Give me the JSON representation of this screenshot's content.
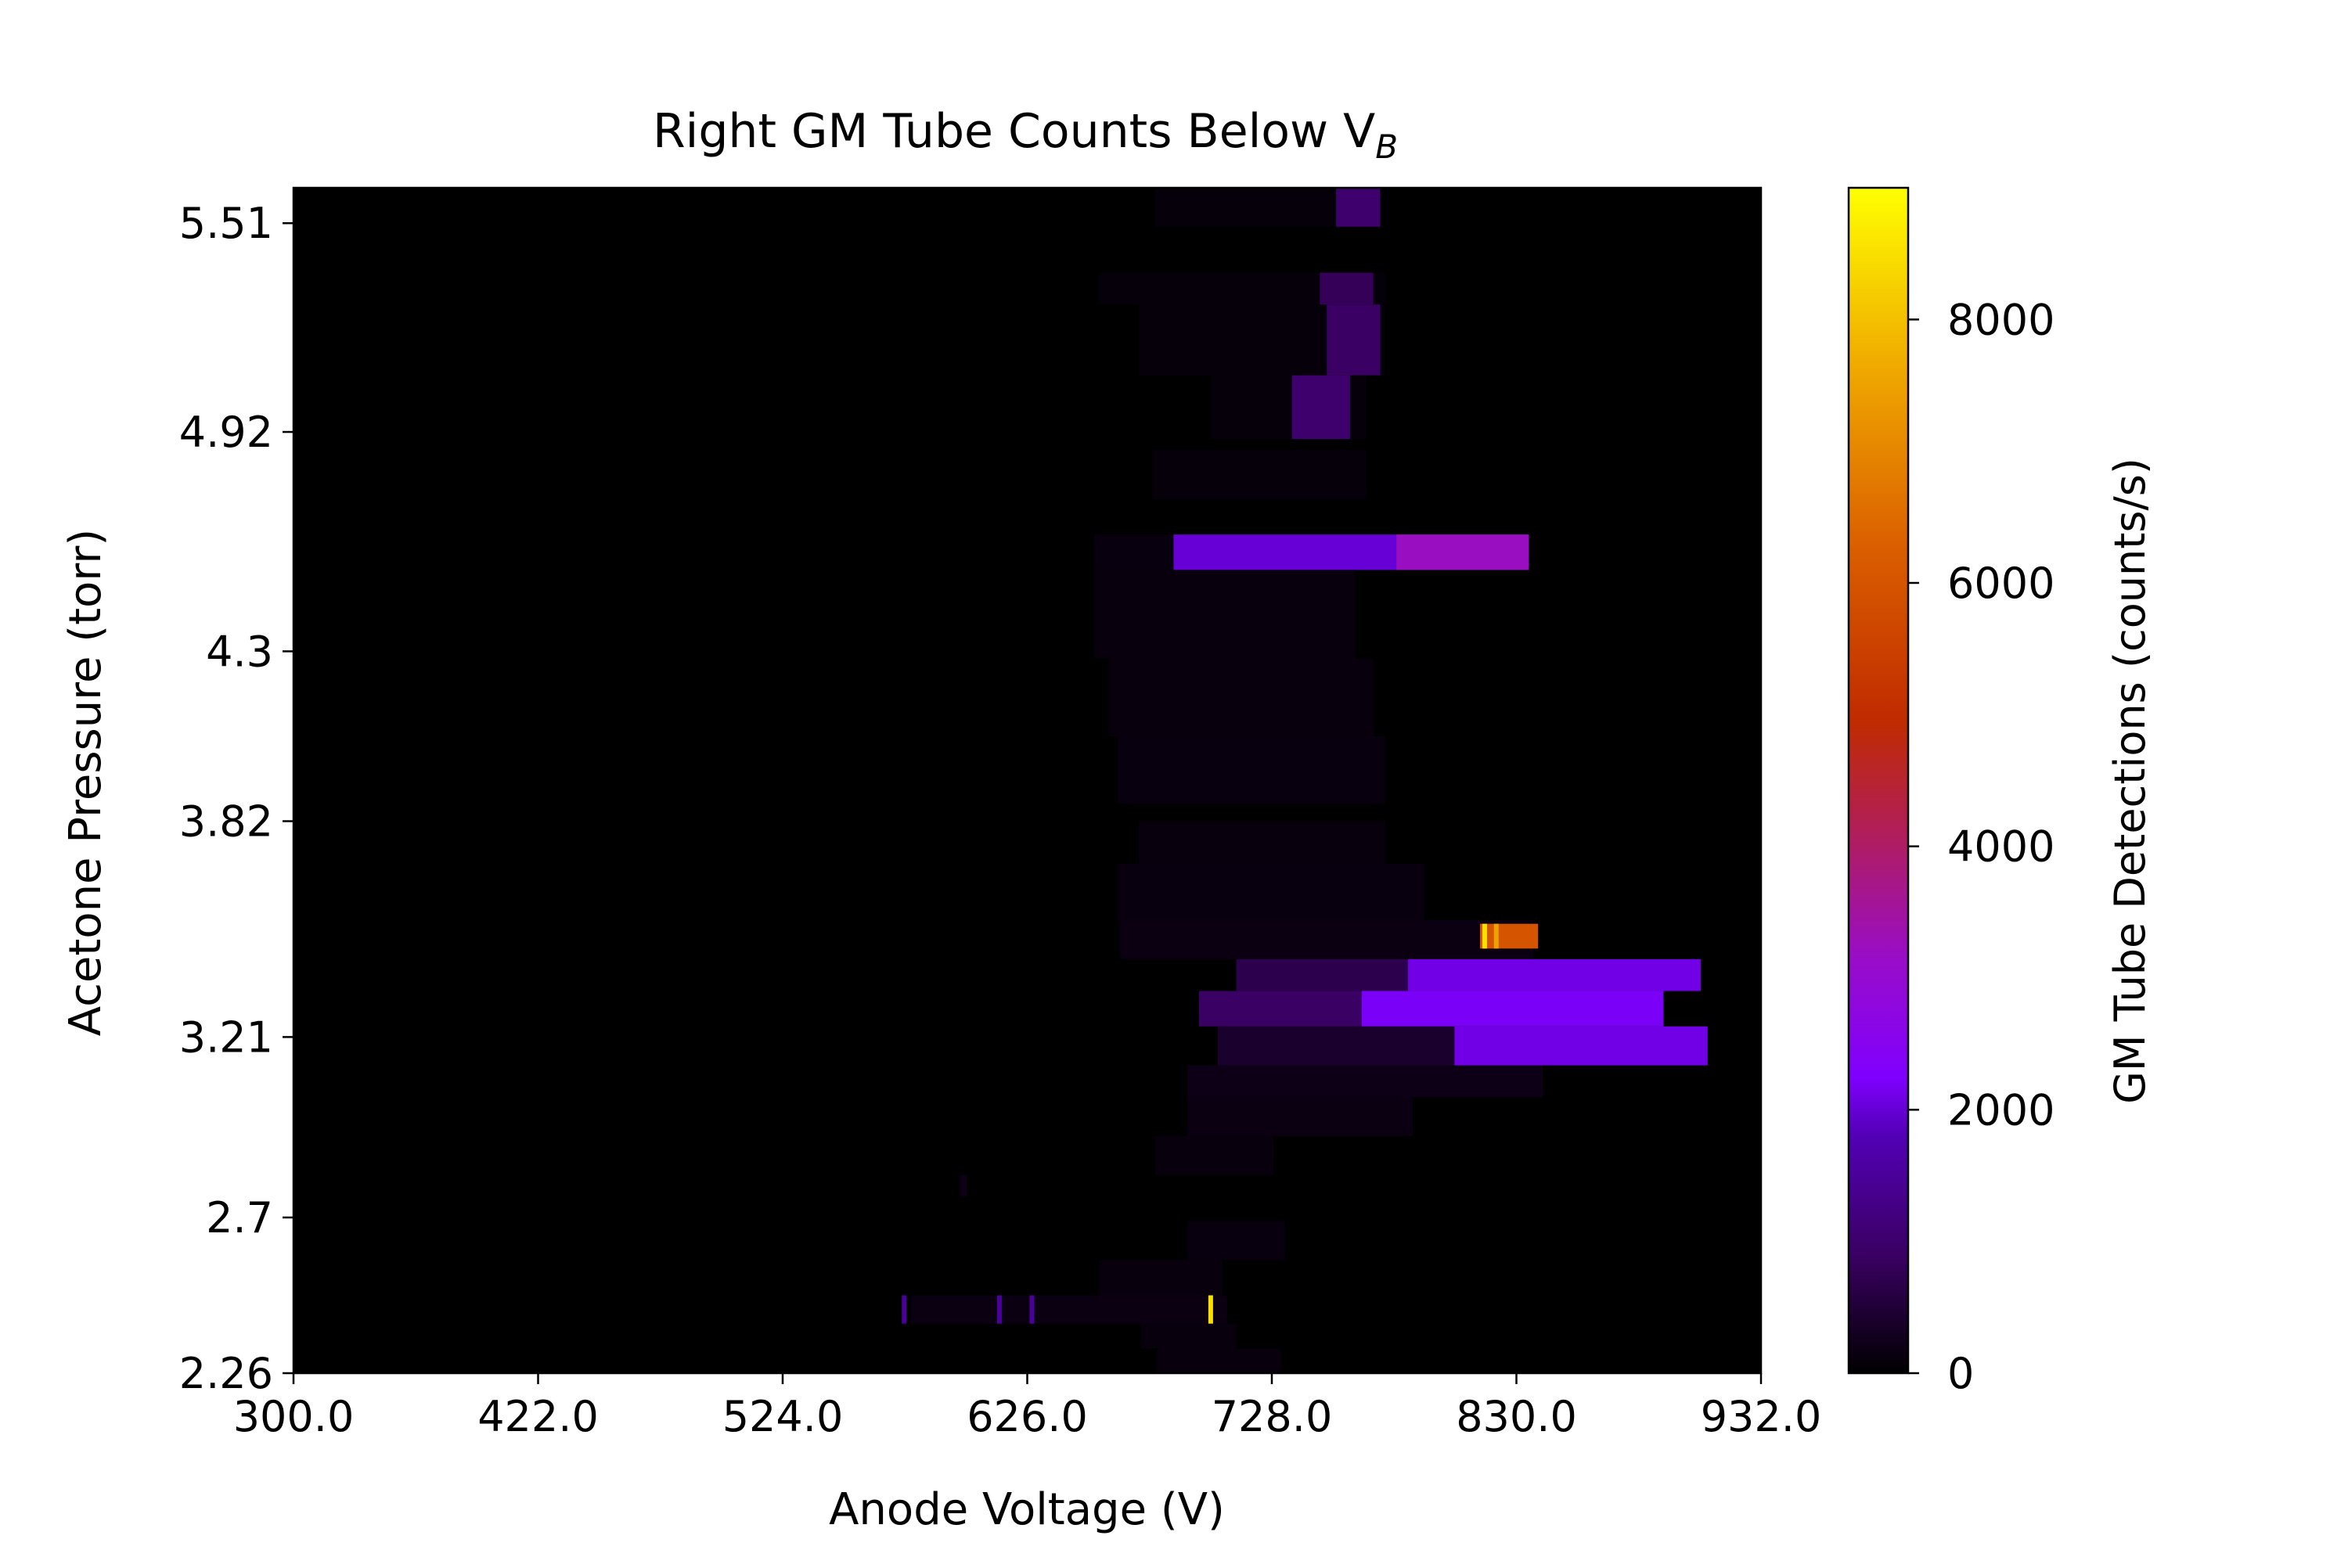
{
  "chart_data": {
    "type": "heatmap",
    "title": "Right GM Tube Counts Below V",
    "title_subscript": "B",
    "xlabel": "Anode Voltage (V)",
    "ylabel": "Acetone Pressure (torr)",
    "xlim": [
      300,
      932
    ],
    "ylim": [
      2.26,
      5.61
    ],
    "x_ticks": [
      "300.0",
      "422.0",
      "524.0",
      "626.0",
      "728.0",
      "830.0",
      "932.0"
    ],
    "y_ticks": [
      "2.26",
      "2.7",
      "3.21",
      "3.82",
      "4.3",
      "4.92",
      "5.51"
    ],
    "colormap": "gnuplot",
    "colorbar": {
      "label": "GM Tube Detections (counts/s)",
      "range": [
        0,
        9000
      ],
      "ticks": [
        "0",
        "2000",
        "4000",
        "6000",
        "8000"
      ]
    },
    "bands": [
      {
        "y": [
          5.5,
          5.61
        ],
        "x": [
          671,
          768
        ],
        "value": 100
      },
      {
        "y": [
          5.5,
          5.61
        ],
        "x": [
          749,
          768
        ],
        "value": 1000
      },
      {
        "y": [
          5.28,
          5.37
        ],
        "x": [
          647,
          770
        ],
        "value": 100
      },
      {
        "y": [
          5.28,
          5.37
        ],
        "x": [
          742,
          765
        ],
        "value": 800
      },
      {
        "y": [
          5.08,
          5.28
        ],
        "x": [
          664,
          770
        ],
        "value": 100
      },
      {
        "y": [
          5.08,
          5.28
        ],
        "x": [
          745,
          768
        ],
        "value": 900
      },
      {
        "y": [
          4.9,
          5.08
        ],
        "x": [
          695,
          762
        ],
        "value": 100
      },
      {
        "y": [
          4.9,
          5.08
        ],
        "x": [
          730,
          755
        ],
        "value": 1000
      },
      {
        "y": [
          4.73,
          4.87
        ],
        "x": [
          670,
          762
        ],
        "value": 100
      },
      {
        "y": [
          4.53,
          4.63
        ],
        "x": [
          645,
          679
        ],
        "value": 130
      },
      {
        "y": [
          4.53,
          4.63
        ],
        "x": [
          679,
          832
        ],
        "value": 2000
      },
      {
        "y": [
          4.53,
          4.63
        ],
        "x": [
          775,
          832
        ],
        "value": 3200
      },
      {
        "y": [
          4.28,
          4.53
        ],
        "x": [
          645,
          757
        ],
        "value": 120
      },
      {
        "y": [
          4.06,
          4.28
        ],
        "x": [
          651,
          765
        ],
        "value": 120
      },
      {
        "y": [
          3.87,
          4.06
        ],
        "x": [
          655,
          770
        ],
        "value": 130
      },
      {
        "y": [
          3.7,
          3.82
        ],
        "x": [
          664,
          770
        ],
        "value": 120
      },
      {
        "y": [
          3.54,
          3.7
        ],
        "x": [
          655,
          787
        ],
        "value": 140
      },
      {
        "y": [
          3.43,
          3.54
        ],
        "x": [
          656,
          834
        ],
        "value": 150
      },
      {
        "y": [
          3.46,
          3.53
        ],
        "x": [
          811,
          836
        ],
        "value": 6000
      },
      {
        "y": [
          3.34,
          3.43
        ],
        "x": [
          706,
          906
        ],
        "value": 700
      },
      {
        "y": [
          3.34,
          3.43
        ],
        "x": [
          780,
          906
        ],
        "value": 2100
      },
      {
        "y": [
          3.24,
          3.34
        ],
        "x": [
          690,
          890
        ],
        "value": 900
      },
      {
        "y": [
          3.24,
          3.34
        ],
        "x": [
          760,
          890
        ],
        "value": 2200
      },
      {
        "y": [
          3.13,
          3.24
        ],
        "x": [
          698,
          909
        ],
        "value": 400
      },
      {
        "y": [
          3.13,
          3.24
        ],
        "x": [
          800,
          909
        ],
        "value": 2100
      },
      {
        "y": [
          3.04,
          3.13
        ],
        "x": [
          685,
          838
        ],
        "value": 200
      },
      {
        "y": [
          2.93,
          3.04
        ],
        "x": [
          685,
          782
        ],
        "value": 160
      },
      {
        "y": [
          2.82,
          2.93
        ],
        "x": [
          671,
          722
        ],
        "value": 120
      },
      {
        "y": [
          2.76,
          2.82
        ],
        "x": [
          587,
          590
        ],
        "value": 200
      },
      {
        "y": [
          2.58,
          2.69
        ],
        "x": [
          685,
          727
        ],
        "value": 130
      },
      {
        "y": [
          2.48,
          2.58
        ],
        "x": [
          647,
          700
        ],
        "value": 120
      },
      {
        "y": [
          2.4,
          2.48
        ],
        "x": [
          566,
          702
        ],
        "value": 150
      },
      {
        "y": [
          2.33,
          2.4
        ],
        "x": [
          665,
          706
        ],
        "value": 120
      },
      {
        "y": [
          2.26,
          2.33
        ],
        "x": [
          672,
          725
        ],
        "value": 120
      }
    ],
    "spikes": [
      {
        "y": [
          2.4,
          2.48
        ],
        "x": 695,
        "value": 8500
      },
      {
        "y": [
          2.4,
          2.48
        ],
        "x": 563,
        "value": 1500
      },
      {
        "y": [
          2.4,
          2.48
        ],
        "x": 604,
        "value": 1500
      },
      {
        "y": [
          2.4,
          2.48
        ],
        "x": 618,
        "value": 1500
      },
      {
        "y": [
          3.46,
          3.53
        ],
        "x": 813,
        "value": 8500
      },
      {
        "y": [
          3.46,
          3.53
        ],
        "x": 818,
        "value": 7500
      }
    ]
  }
}
